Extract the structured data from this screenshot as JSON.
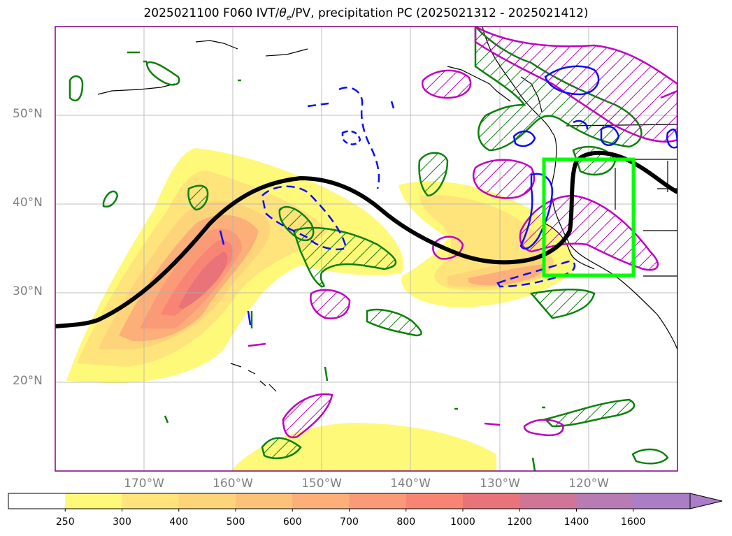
{
  "title": {
    "prefix": "2025021100 F060 IVT/",
    "theta": "θ",
    "theta_sub": "e",
    "suffix": "/PV, precipitation PC (2025021312 - 2025021412)"
  },
  "map": {
    "lat_labels": [
      "50°N",
      "40°N",
      "30°N",
      "20°N"
    ],
    "lon_labels": [
      "170°W",
      "160°W",
      "150°W",
      "140°W",
      "130°W",
      "120°W"
    ],
    "extent": {
      "lon_min": -180,
      "lon_max": -110,
      "lat_min": 10,
      "lat_max": 60
    }
  },
  "colorbar": {
    "ticks": [
      "250",
      "300",
      "400",
      "500",
      "600",
      "700",
      "800",
      "1000",
      "1200",
      "1400",
      "1600"
    ],
    "colors": [
      "#ffffff",
      "#fff97a",
      "#fee47b",
      "#fed47a",
      "#fdc27a",
      "#fcaf78",
      "#fb9a76",
      "#f88574",
      "#e87378",
      "#cf7595",
      "#b87cb4",
      "#a97ec6"
    ],
    "extend": "max"
  },
  "legend_colors": {
    "ivt_contour": "#000000",
    "theta_e_green": "#0a800a",
    "pv_magenta": "#c000c0",
    "pv_blue": "#0b0bff",
    "target_box": "#00ff00"
  }
}
